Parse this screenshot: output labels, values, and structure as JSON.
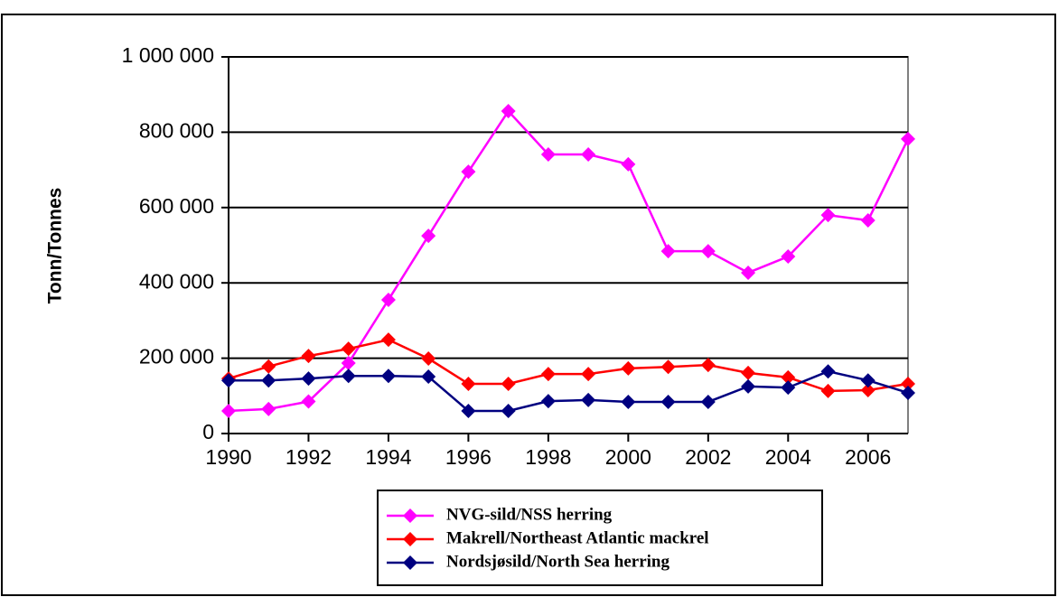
{
  "chart_data": {
    "type": "line",
    "y_label": "Tonn/Tonnes",
    "x": [
      1990,
      1991,
      1992,
      1993,
      1994,
      1995,
      1996,
      1997,
      1998,
      1999,
      2000,
      2001,
      2002,
      2003,
      2004,
      2005,
      2006,
      2007
    ],
    "series": [
      {
        "name": "NVG-sild/NSS herring",
        "color": "#ff00ff",
        "values": [
          60000,
          65000,
          85000,
          187000,
          355000,
          525000,
          695000,
          856000,
          741000,
          741000,
          715000,
          484000,
          484000,
          427000,
          470000,
          580000,
          566000,
          782000
        ]
      },
      {
        "name": "Makrell/Northeast Atlantic mackrel",
        "color": "#ff0000",
        "values": [
          146000,
          178000,
          206000,
          225000,
          249000,
          199000,
          132000,
          132000,
          158000,
          158000,
          173000,
          177000,
          182000,
          161000,
          149000,
          113000,
          115000,
          132000
        ]
      },
      {
        "name": "Nordsjøsild/North Sea herring",
        "color": "#000080",
        "values": [
          141000,
          141000,
          146000,
          153000,
          153000,
          151000,
          60000,
          60000,
          86000,
          89000,
          84000,
          84000,
          84000,
          125000,
          122000,
          165000,
          141000,
          108000
        ]
      }
    ],
    "xlim": [
      1990,
      2007
    ],
    "xticks": [
      1990,
      1992,
      1994,
      1996,
      1998,
      2000,
      2002,
      2004,
      2006
    ],
    "ylim": [
      0,
      1000000
    ],
    "yticks": [
      0,
      {
        "value": 200000,
        "label": "200 000"
      },
      {
        "value": 400000,
        "label": "400 000"
      },
      {
        "value": 600000,
        "label": "600 000"
      },
      {
        "value": 800000,
        "label": "800 000"
      },
      {
        "value": 1000000,
        "label": "1 000 000"
      }
    ],
    "grid": true,
    "legend": "bottom"
  }
}
